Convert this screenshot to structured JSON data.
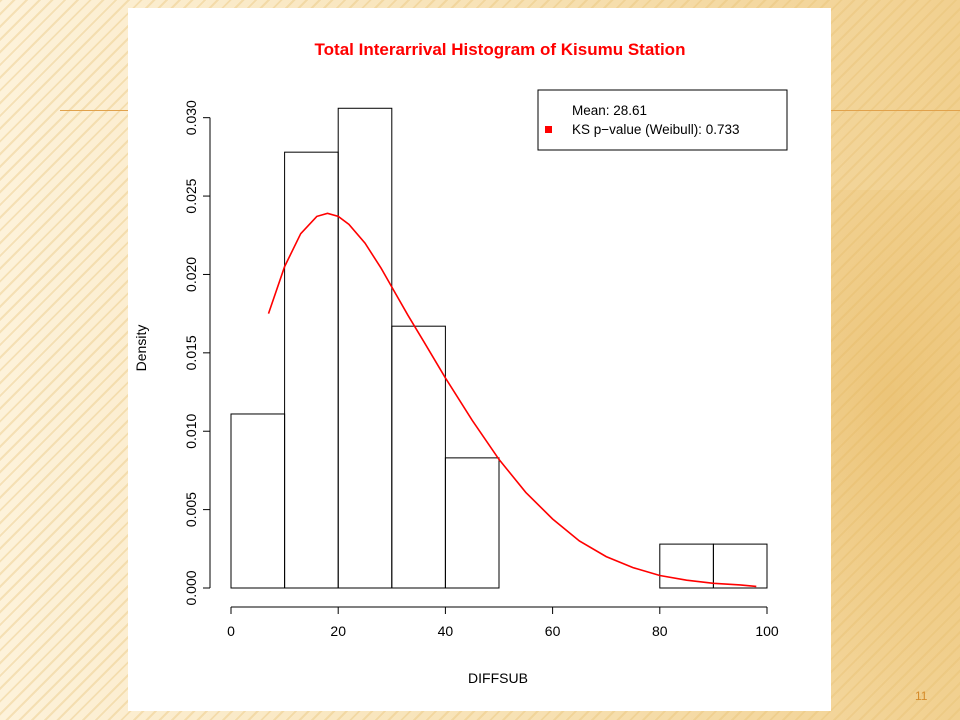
{
  "slide": {
    "page_number": "11"
  },
  "chart_data": {
    "type": "bar",
    "title": "Total Interarrival Histogram of Kisumu Station",
    "xlabel": "DIFFSUB",
    "ylabel": "Density",
    "xlim": [
      0,
      100
    ],
    "ylim": [
      0,
      0.031
    ],
    "x_ticks": [
      0,
      20,
      40,
      60,
      80,
      100
    ],
    "x_tick_labels": [
      "0",
      "20",
      "40",
      "60",
      "80",
      "100"
    ],
    "y_ticks": [
      0,
      0.005,
      0.01,
      0.015,
      0.02,
      0.025,
      0.03
    ],
    "y_tick_labels": [
      "0.000",
      "0.005",
      "0.010",
      "0.015",
      "0.020",
      "0.025",
      "0.030"
    ],
    "bins": [
      {
        "x0": 0,
        "x1": 10,
        "density": 0.0111
      },
      {
        "x0": 10,
        "x1": 20,
        "density": 0.0278
      },
      {
        "x0": 20,
        "x1": 30,
        "density": 0.0306
      },
      {
        "x0": 30,
        "x1": 40,
        "density": 0.0167
      },
      {
        "x0": 40,
        "x1": 50,
        "density": 0.0083
      },
      {
        "x0": 50,
        "x1": 60,
        "density": 0
      },
      {
        "x0": 60,
        "x1": 70,
        "density": 0
      },
      {
        "x0": 70,
        "x1": 80,
        "density": 0
      },
      {
        "x0": 80,
        "x1": 90,
        "density": 0.0028
      },
      {
        "x0": 90,
        "x1": 100,
        "density": 0.0028
      }
    ],
    "fitted_curve": {
      "distribution": "Weibull",
      "color": "#ff0000",
      "x": [
        7,
        10,
        13,
        16,
        18,
        20,
        22,
        25,
        28,
        30,
        33,
        36,
        40,
        45,
        50,
        55,
        60,
        65,
        70,
        75,
        80,
        85,
        90,
        95,
        98
      ],
      "y": [
        0.0175,
        0.0205,
        0.0226,
        0.0237,
        0.0239,
        0.0237,
        0.0232,
        0.022,
        0.0204,
        0.0192,
        0.0174,
        0.0157,
        0.0134,
        0.0107,
        0.0082,
        0.0061,
        0.0044,
        0.003,
        0.002,
        0.0013,
        0.0008,
        0.0005,
        0.0003,
        0.0002,
        0.0001
      ]
    },
    "legend": {
      "position": "top-right",
      "entries": [
        {
          "label": "Mean: 28.61",
          "marker": "none"
        },
        {
          "label": "KS p−value (Weibull): 0.733",
          "marker": "square",
          "color": "#ff0000"
        }
      ]
    },
    "grid": false
  }
}
